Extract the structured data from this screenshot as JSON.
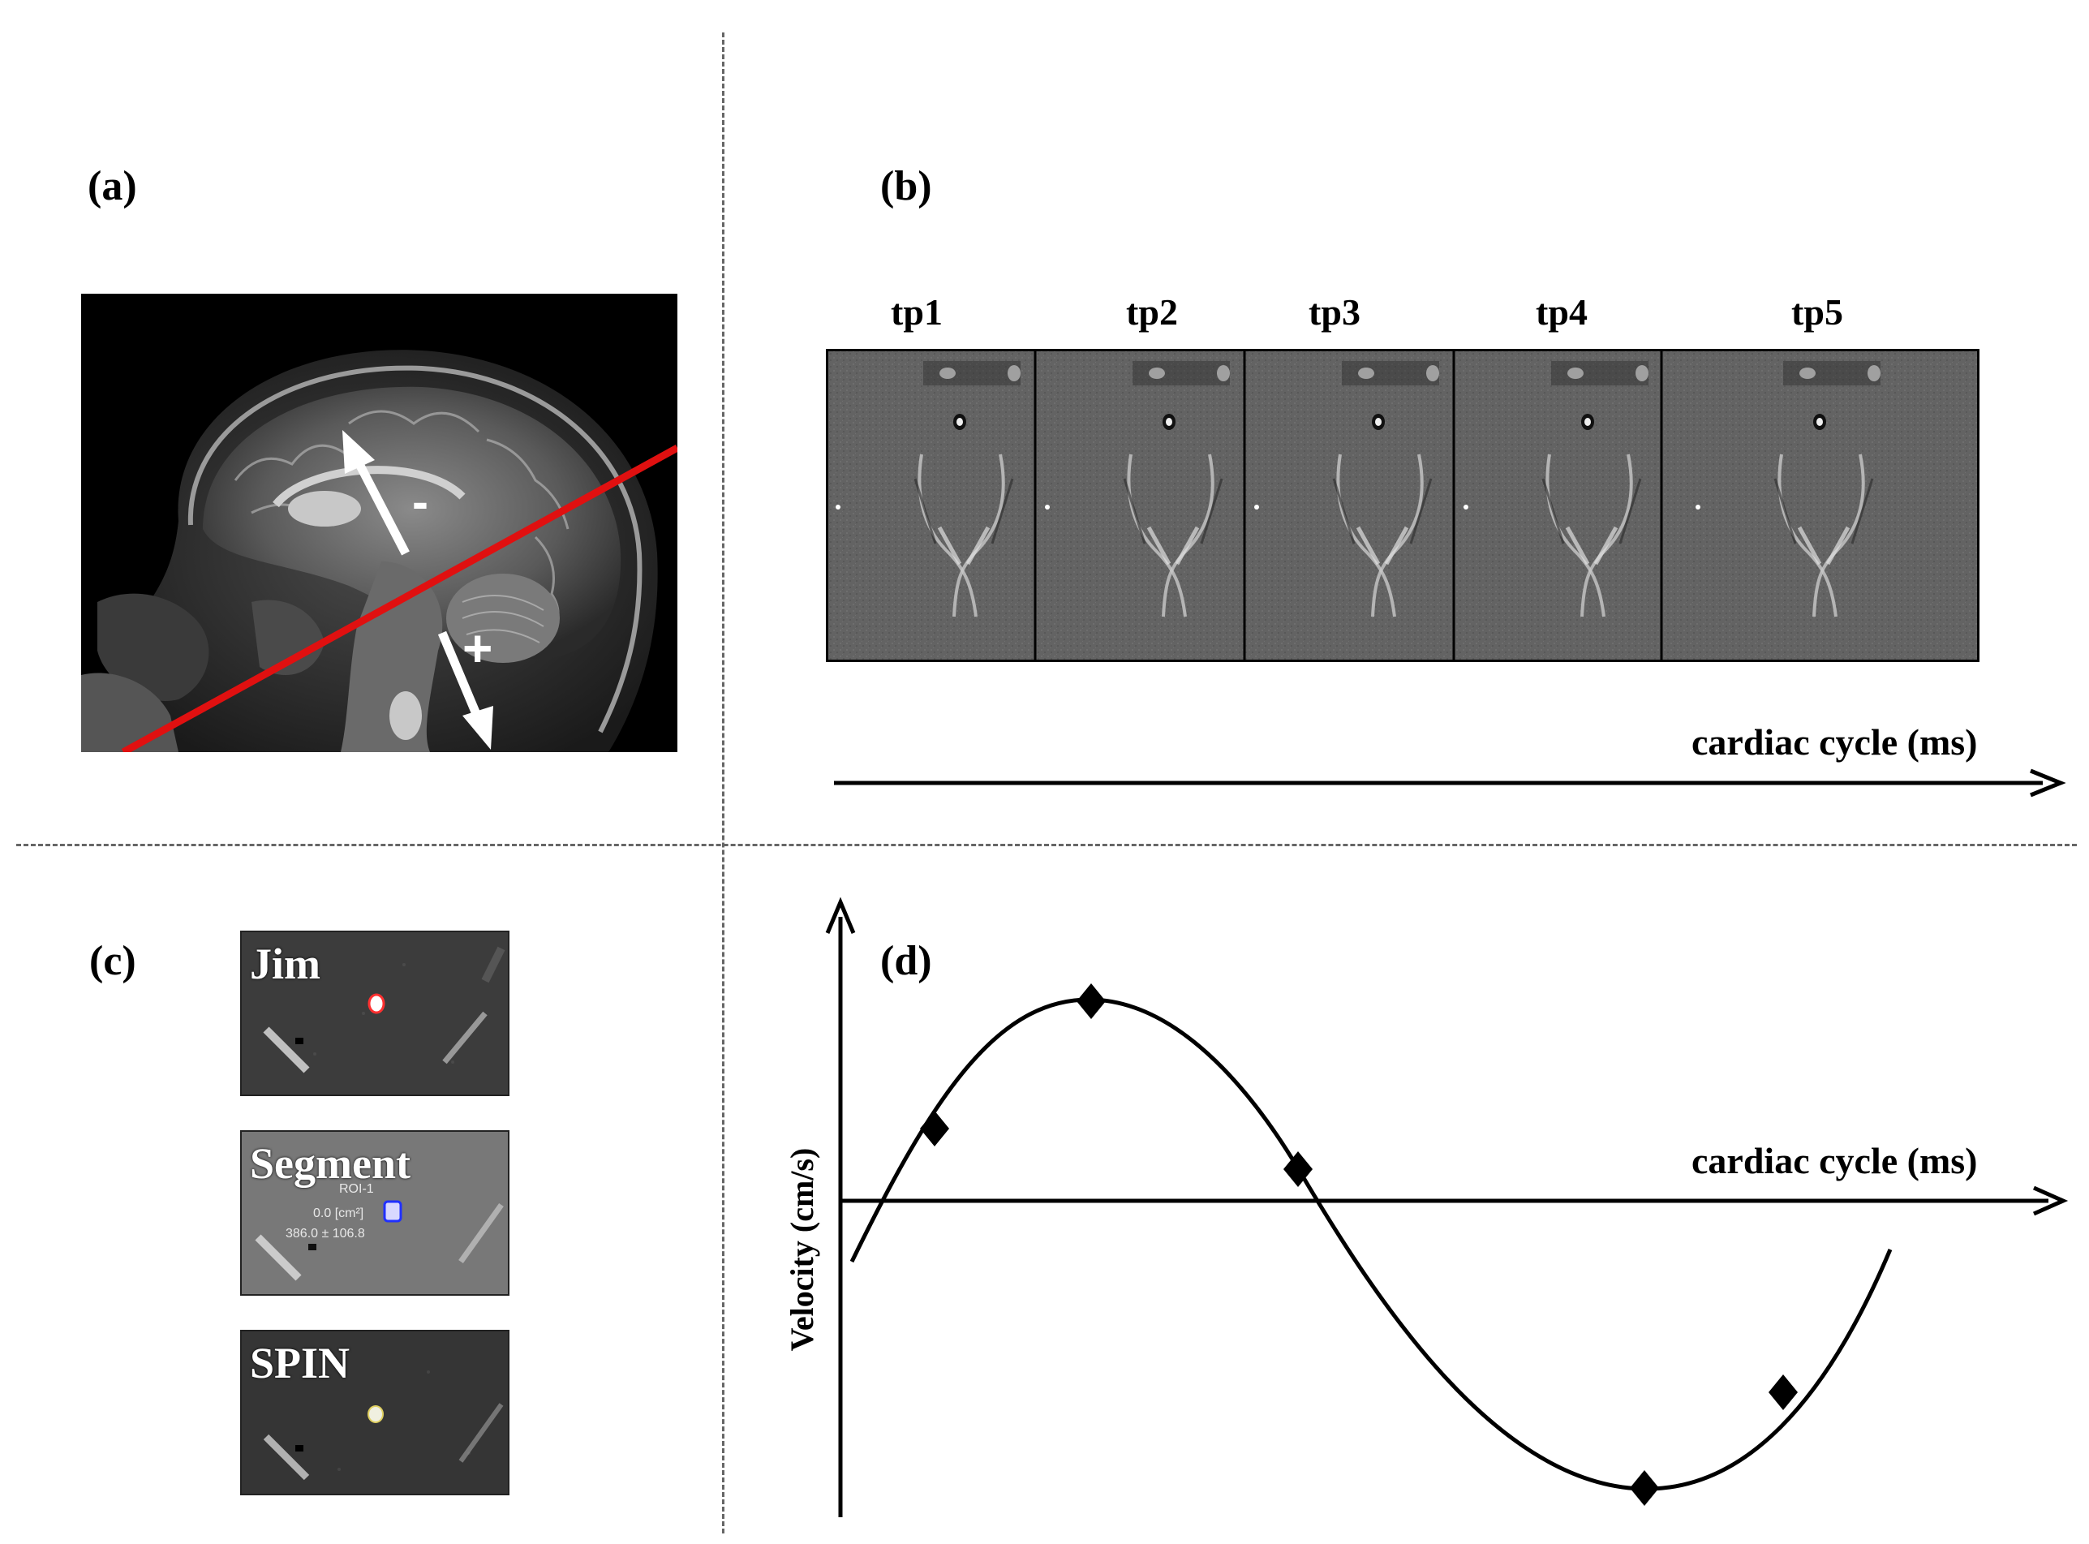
{
  "panels": {
    "a": {
      "label": "(a)",
      "sign_minus": "-",
      "sign_plus": "+"
    },
    "b": {
      "label": "(b)",
      "timepoints": [
        "tp1",
        "tp2",
        "tp3",
        "tp4",
        "tp5"
      ],
      "axis_label": "cardiac cycle (ms)"
    },
    "c": {
      "label": "(c)",
      "thumbnails": [
        {
          "title": "Jim"
        },
        {
          "title": "Segment",
          "roi_line1": "ROI-1",
          "roi_line2": "0.0 [cm²]",
          "roi_line3": "386.0 ± 106.8"
        },
        {
          "title": "SPIN"
        }
      ]
    },
    "d": {
      "label": "(d)",
      "x_axis_label": "cardiac cycle (ms)",
      "y_axis_label": "Velocity (cm/s)"
    }
  },
  "colors": {
    "cut_line": "#e01010",
    "roi_jim": "#ff3030",
    "roi_segment": "#2030ff",
    "roi_spin": "#e0d060"
  },
  "icons": [
    "arrow-up-left-icon",
    "arrow-down-right-icon"
  ]
}
